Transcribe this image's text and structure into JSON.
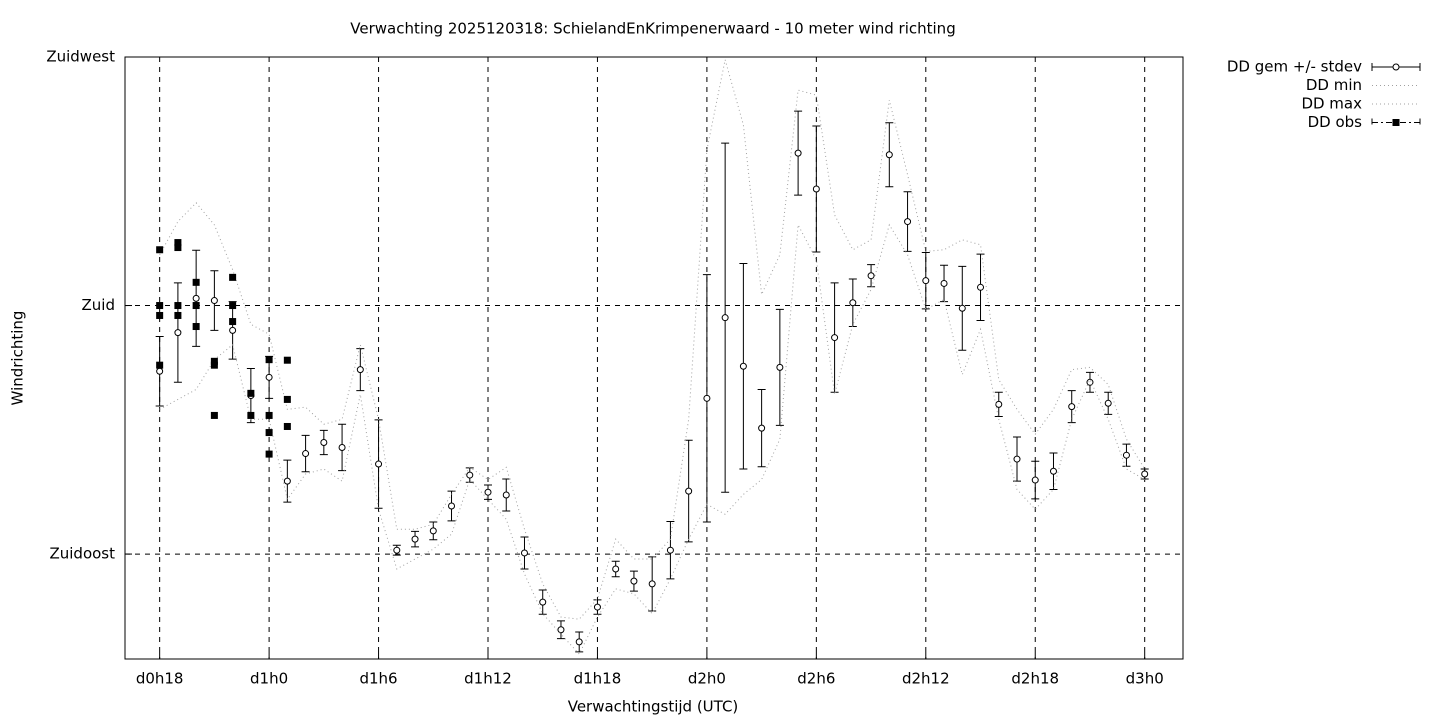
{
  "chart_data": {
    "type": "line",
    "title": "Verwachting 2025120318: SchielandEnKrimpenerwaard - 10 meter wind richting",
    "xlabel": "Verwachtingstijd (UTC)",
    "ylabel": "Windrichting",
    "x": [
      18,
      19,
      20,
      21,
      22,
      23,
      24,
      25,
      26,
      27,
      28,
      29,
      30,
      31,
      32,
      33,
      34,
      35,
      36,
      37,
      38,
      39,
      40,
      41,
      42,
      43,
      44,
      45,
      46,
      47,
      48,
      49,
      50,
      51,
      52,
      53,
      54,
      55,
      56,
      57,
      58,
      59,
      60,
      61,
      62,
      63,
      64,
      65,
      66,
      67,
      68,
      69,
      70,
      71,
      72
    ],
    "xlim": [
      16.1,
      74.1
    ],
    "xticks": [
      {
        "value": 18,
        "label": "d0h18"
      },
      {
        "value": 24,
        "label": "d1h0"
      },
      {
        "value": 30,
        "label": "d1h6"
      },
      {
        "value": 36,
        "label": "d1h12"
      },
      {
        "value": 42,
        "label": "d1h18"
      },
      {
        "value": 48,
        "label": "d2h0"
      },
      {
        "value": 54,
        "label": "d2h6"
      },
      {
        "value": 60,
        "label": "d2h12"
      },
      {
        "value": 66,
        "label": "d2h18"
      },
      {
        "value": 72,
        "label": "d3h0"
      }
    ],
    "ylim": [
      116,
      225
    ],
    "yticks": [
      {
        "value": 135,
        "label": "Zuidoost"
      },
      {
        "value": 180,
        "label": "Zuid"
      },
      {
        "value": 225,
        "label": "Zuidwest"
      }
    ],
    "grid": true,
    "legend": "outside-top-right",
    "series": [
      {
        "name": "DD gem +/- stdev",
        "color": "#000000",
        "style": "errorbars",
        "values": [
          168.1,
          175.1,
          181.3,
          180.9,
          175.5,
          163.7,
          167.0,
          148.2,
          153.2,
          155.2,
          154.3,
          168.4,
          151.3,
          135.7,
          137.7,
          139.2,
          143.7,
          149.3,
          146.2,
          145.7,
          135.2,
          126.3,
          121.3,
          119.1,
          125.4,
          132.3,
          130.1,
          129.6,
          135.7,
          146.4,
          163.2,
          177.8,
          169.0,
          157.8,
          168.8,
          207.6,
          201.1,
          174.2,
          180.5,
          185.4,
          207.3,
          195.2,
          184.5,
          184.0,
          179.5,
          183.3,
          162.1,
          152.2,
          148.4,
          150.0,
          161.7,
          166.1,
          162.3,
          152.9,
          149.5
        ],
        "errors": [
          6.3,
          9.0,
          8.7,
          5.4,
          5.2,
          4.9,
          3.8,
          3.8,
          3.3,
          2.2,
          4.2,
          3.8,
          8.0,
          0.9,
          1.4,
          1.6,
          2.7,
          1.3,
          1.3,
          2.9,
          2.9,
          2.2,
          1.6,
          1.8,
          1.3,
          1.4,
          1.8,
          4.9,
          5.2,
          9.2,
          22.4,
          31.6,
          18.6,
          7.0,
          10.5,
          7.6,
          11.4,
          9.9,
          4.3,
          2.0,
          5.8,
          5.4,
          5.1,
          3.3,
          7.6,
          6.0,
          2.2,
          4.0,
          3.4,
          3.3,
          2.9,
          1.8,
          2.0,
          2.0,
          0.9
        ]
      },
      {
        "name": "DD min",
        "color": "#a0a0a0",
        "style": "dotted",
        "values": [
          161.2,
          163.0,
          164.8,
          170.2,
          172.9,
          159.4,
          159.4,
          144.9,
          149.5,
          150.4,
          148.2,
          163.9,
          143.1,
          132.3,
          134.1,
          135.9,
          138.6,
          148.5,
          144.9,
          141.3,
          131.4,
          124.2,
          120.5,
          116.9,
          123.6,
          128.7,
          127.8,
          124.2,
          130.5,
          137.7,
          144.0,
          142.2,
          145.8,
          148.5,
          155.8,
          194.6,
          188.3,
          163.9,
          176.6,
          182.9,
          194.6,
          189.2,
          179.3,
          181.1,
          167.5,
          175.7,
          159.4,
          146.7,
          143.1,
          146.7,
          159.4,
          166.6,
          159.4,
          150.4,
          148.5
        ]
      },
      {
        "name": "DD max",
        "color": "#a0a0a0",
        "style": "dotted",
        "values": [
          189.2,
          195.2,
          198.6,
          194.6,
          186.5,
          176.6,
          174.8,
          161.2,
          161.6,
          158.5,
          159.4,
          172.9,
          159.4,
          139.5,
          139.5,
          140.4,
          145.8,
          150.7,
          148.5,
          150.7,
          139.5,
          129.6,
          123.6,
          123.2,
          126.9,
          137.7,
          134.1,
          134.1,
          137.7,
          159.4,
          208.2,
          224.5,
          212.7,
          182.0,
          189.2,
          219.0,
          218.1,
          196.4,
          190.1,
          191.9,
          217.2,
          203.7,
          189.8,
          190.1,
          191.9,
          191.0,
          166.6,
          161.2,
          156.7,
          161.2,
          168.4,
          168.8,
          165.7,
          155.8,
          150.4
        ]
      },
      {
        "name": "DD obs",
        "color": "#000000",
        "style": "points",
        "x": [
          18,
          18,
          18,
          18,
          19,
          19,
          19,
          19,
          20,
          20,
          20,
          21,
          21,
          21,
          22,
          22,
          22,
          23,
          23,
          24,
          24,
          24,
          24,
          25,
          25,
          25
        ],
        "values": [
          190.1,
          180,
          178.2,
          169.2,
          191.4,
          190.5,
          180,
          178.2,
          184.2,
          180,
          176.2,
          169.9,
          169.2,
          160.1,
          185.1,
          180,
          177.1,
          164.1,
          160.1,
          170.2,
          160.1,
          157.0,
          153.1,
          170.1,
          163.0,
          158.1
        ]
      }
    ]
  }
}
